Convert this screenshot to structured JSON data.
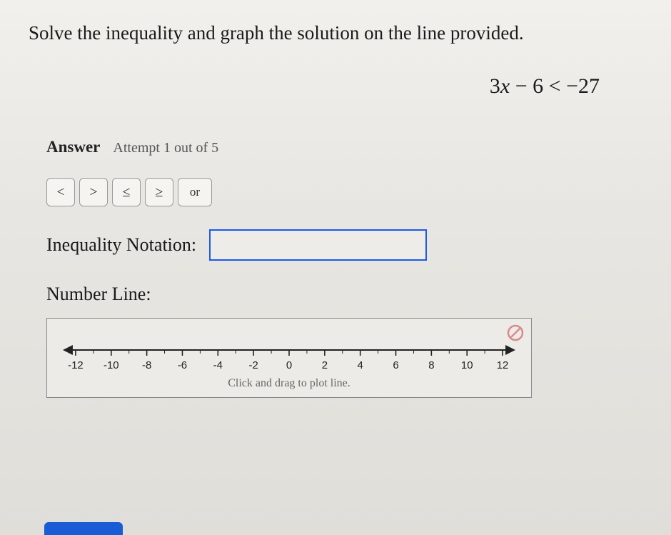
{
  "question": "Solve the inequality and graph the solution on the line provided.",
  "equation_html": "3<span class='var'>x</span> − 6 < −27",
  "answer_label": "Answer",
  "attempt_text": "Attempt 1 out of 5",
  "buttons": {
    "lt": "<",
    "gt": ">",
    "le": "≤",
    "ge": "≥",
    "or": "or"
  },
  "inequality_label": "Inequality Notation:",
  "inequality_value": "",
  "number_line_label": "Number Line:",
  "number_line": {
    "min": -12,
    "max": 12,
    "step": 2,
    "ticks": [
      -12,
      -10,
      -8,
      -6,
      -4,
      -2,
      0,
      2,
      4,
      6,
      8,
      10,
      12
    ],
    "minor_per_step": 1,
    "axis_color": "#222222",
    "tick_color": "#222222",
    "label_fontsize": 15,
    "label_color": "#222222",
    "arrowheads": true
  },
  "number_line_hint": "Click and drag to plot line.",
  "colors": {
    "background": "#e8e6e2",
    "input_border": "#1e5ae6",
    "button_border": "#999999",
    "cancel_icon": "#d98a8a",
    "bottom_button": "#1a5cd6"
  }
}
